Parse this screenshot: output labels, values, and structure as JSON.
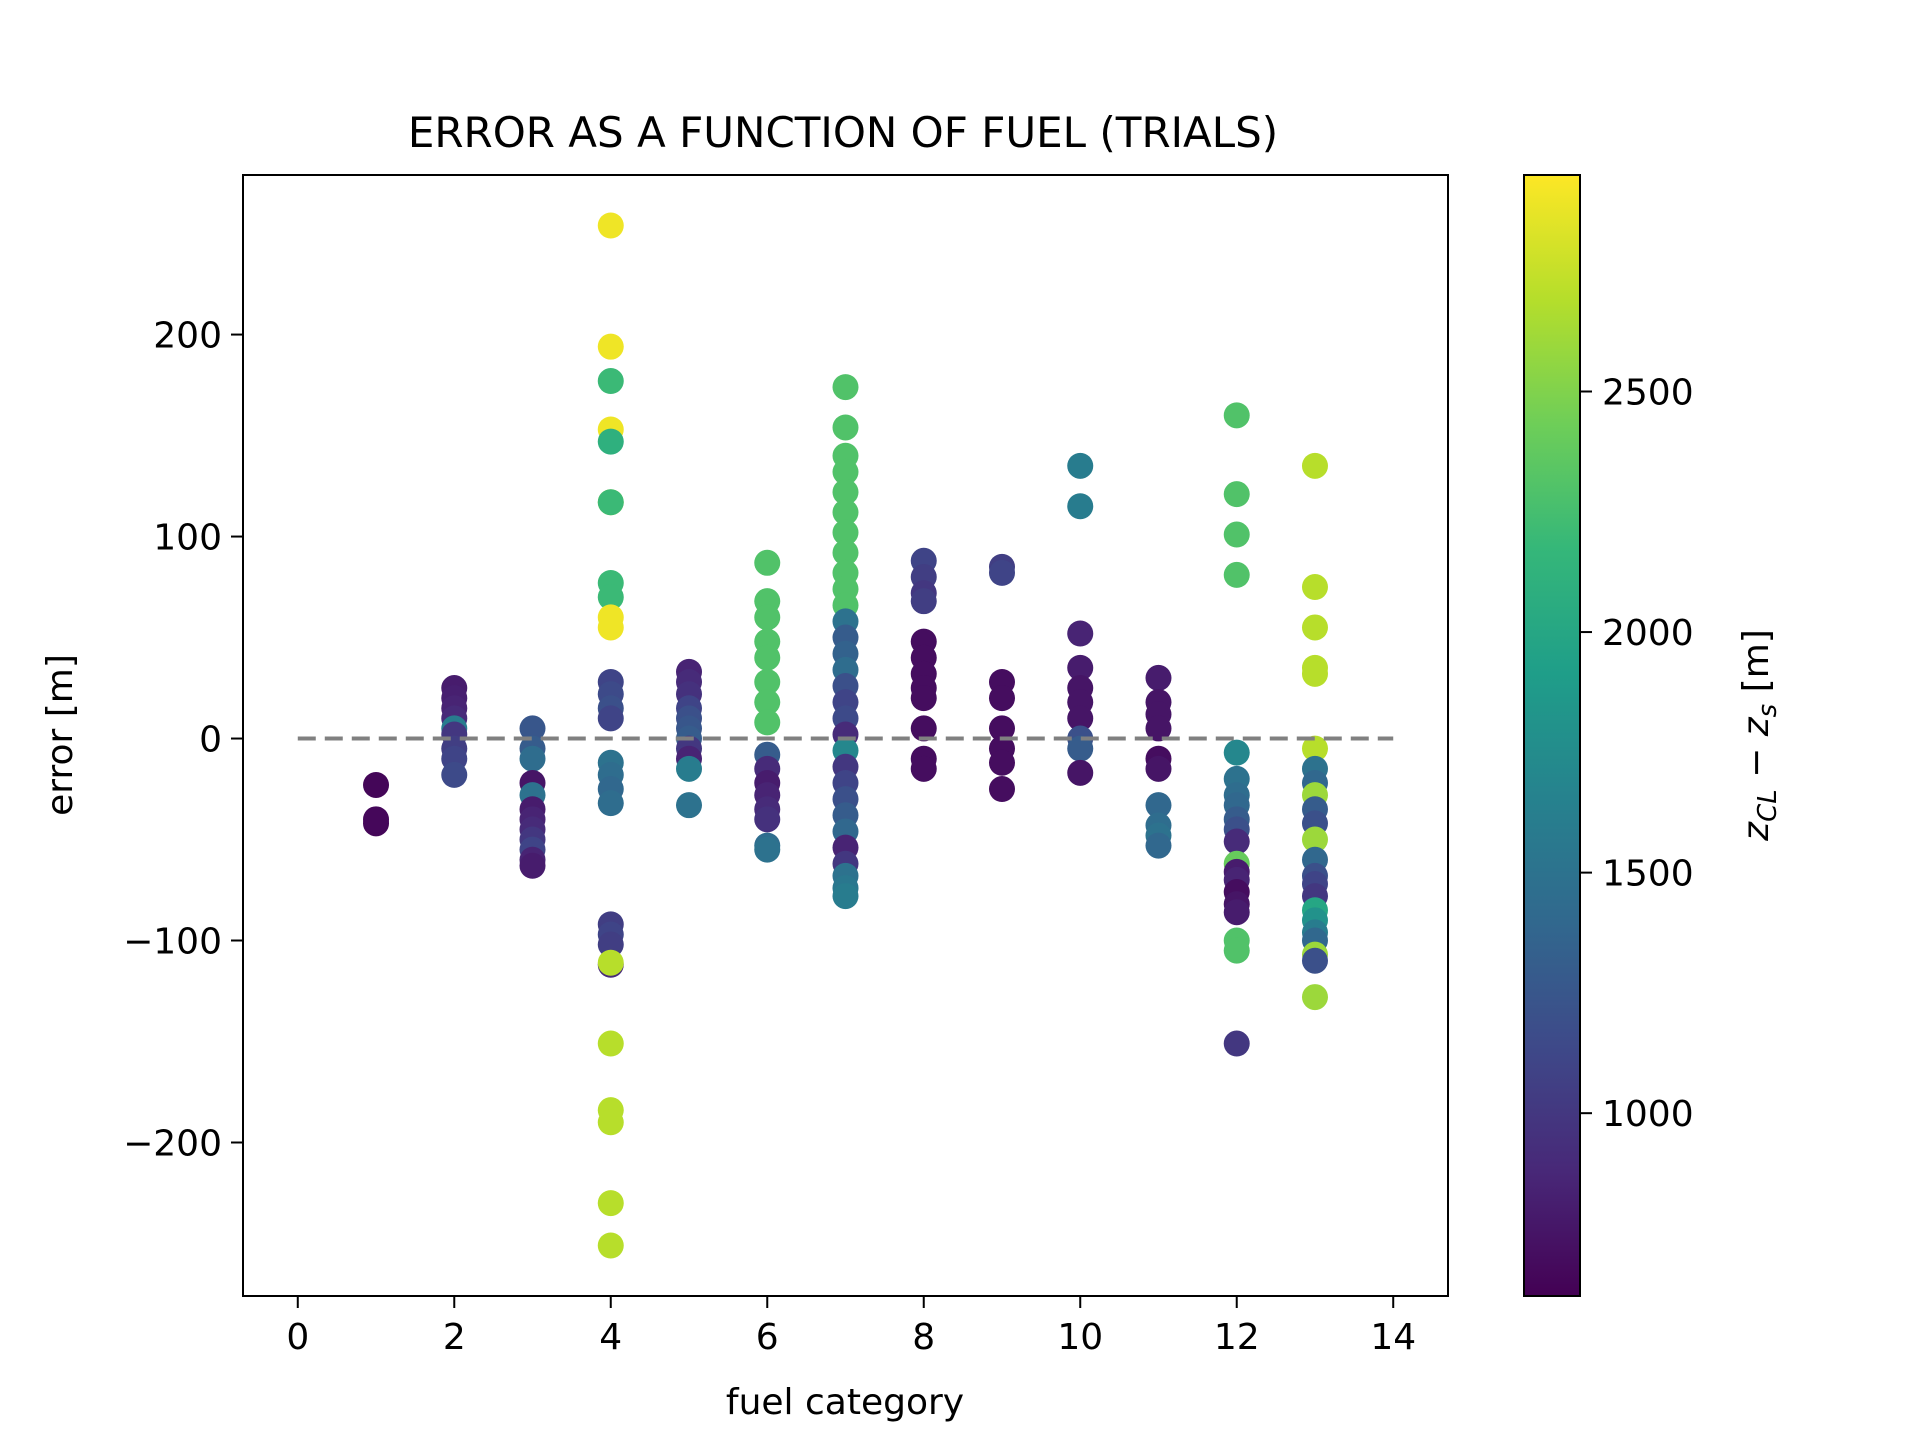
{
  "chart_data": {
    "type": "scatter",
    "title": "ERROR AS A FUNCTION OF FUEL (TRIALS)",
    "xlabel": "fuel category",
    "ylabel": "error [m]",
    "xlim": [
      -0.7,
      14.7
    ],
    "ylim": [
      -276,
      279
    ],
    "x_ticks": [
      0,
      2,
      4,
      6,
      8,
      10,
      12,
      14
    ],
    "x_tick_labels": [
      "0",
      "2",
      "4",
      "6",
      "8",
      "10",
      "12",
      "14"
    ],
    "y_ticks": [
      -200,
      -100,
      0,
      100,
      200
    ],
    "y_tick_labels": [
      "−200",
      "−100",
      "0",
      "100",
      "200"
    ],
    "reference_line": {
      "y": 0,
      "x_range": [
        0,
        14
      ],
      "style": "dashed",
      "color": "#808080"
    },
    "grid": false,
    "colorbar": {
      "label": "z_CL − z_s [m]",
      "label_main": "z",
      "label_sub1": "CL",
      "label_mid": " − ",
      "label_var2": "z",
      "label_sub2": "s",
      "label_unit": " [m]",
      "range": [
        620,
        2950
      ],
      "ticks": [
        1000,
        1500,
        2000,
        2500
      ],
      "tick_labels": [
        "1000",
        "1500",
        "2000",
        "2500"
      ],
      "colormap": "viridis",
      "colormap_stops": [
        "#440154",
        "#482878",
        "#3e4989",
        "#31688e",
        "#26828e",
        "#1f9e89",
        "#35b779",
        "#6ece58",
        "#b5de2b",
        "#fde725"
      ]
    },
    "points": [
      {
        "x": 1,
        "y": -23,
        "c": 650
      },
      {
        "x": 1,
        "y": -42,
        "c": 650
      },
      {
        "x": 1,
        "y": -40,
        "c": 660
      },
      {
        "x": 2,
        "y": 25,
        "c": 800
      },
      {
        "x": 2,
        "y": 20,
        "c": 820
      },
      {
        "x": 2,
        "y": 15,
        "c": 850
      },
      {
        "x": 2,
        "y": 10,
        "c": 900
      },
      {
        "x": 2,
        "y": 5,
        "c": 1600
      },
      {
        "x": 2,
        "y": 2,
        "c": 1000
      },
      {
        "x": 2,
        "y": -5,
        "c": 1050
      },
      {
        "x": 2,
        "y": -10,
        "c": 1100
      },
      {
        "x": 2,
        "y": -18,
        "c": 1150
      },
      {
        "x": 3,
        "y": 5,
        "c": 1250
      },
      {
        "x": 3,
        "y": -5,
        "c": 1300
      },
      {
        "x": 3,
        "y": -10,
        "c": 1450
      },
      {
        "x": 3,
        "y": -22,
        "c": 750
      },
      {
        "x": 3,
        "y": -28,
        "c": 1500
      },
      {
        "x": 3,
        "y": -35,
        "c": 800
      },
      {
        "x": 3,
        "y": -40,
        "c": 850
      },
      {
        "x": 3,
        "y": -45,
        "c": 900
      },
      {
        "x": 3,
        "y": -50,
        "c": 1000
      },
      {
        "x": 3,
        "y": -55,
        "c": 1100
      },
      {
        "x": 3,
        "y": -60,
        "c": 850
      },
      {
        "x": 3,
        "y": -63,
        "c": 800
      },
      {
        "x": 4,
        "y": 254,
        "c": 2900
      },
      {
        "x": 4,
        "y": 194,
        "c": 2900
      },
      {
        "x": 4,
        "y": 177,
        "c": 2200
      },
      {
        "x": 4,
        "y": 153,
        "c": 2900
      },
      {
        "x": 4,
        "y": 147,
        "c": 2100
      },
      {
        "x": 4,
        "y": 117,
        "c": 2700
      },
      {
        "x": 4,
        "y": 117,
        "c": 2200
      },
      {
        "x": 4,
        "y": 77,
        "c": 2200
      },
      {
        "x": 4,
        "y": 70,
        "c": 2200
      },
      {
        "x": 4,
        "y": 60,
        "c": 2900
      },
      {
        "x": 4,
        "y": 55,
        "c": 2900
      },
      {
        "x": 4,
        "y": 28,
        "c": 1100
      },
      {
        "x": 4,
        "y": 22,
        "c": 1150
      },
      {
        "x": 4,
        "y": 15,
        "c": 1200
      },
      {
        "x": 4,
        "y": 10,
        "c": 1100
      },
      {
        "x": 4,
        "y": -12,
        "c": 1500
      },
      {
        "x": 4,
        "y": -18,
        "c": 1450
      },
      {
        "x": 4,
        "y": -25,
        "c": 1400
      },
      {
        "x": 4,
        "y": -32,
        "c": 1450
      },
      {
        "x": 4,
        "y": -92,
        "c": 1050
      },
      {
        "x": 4,
        "y": -97,
        "c": 1100
      },
      {
        "x": 4,
        "y": -102,
        "c": 1050
      },
      {
        "x": 4,
        "y": -112,
        "c": 900
      },
      {
        "x": 4,
        "y": -111,
        "c": 2700
      },
      {
        "x": 4,
        "y": -151,
        "c": 2700
      },
      {
        "x": 4,
        "y": -184,
        "c": 2700
      },
      {
        "x": 4,
        "y": -190,
        "c": 2700
      },
      {
        "x": 4,
        "y": -230,
        "c": 2700
      },
      {
        "x": 4,
        "y": -251,
        "c": 2700
      },
      {
        "x": 5,
        "y": 33,
        "c": 850
      },
      {
        "x": 5,
        "y": 28,
        "c": 900
      },
      {
        "x": 5,
        "y": 22,
        "c": 950
      },
      {
        "x": 5,
        "y": 15,
        "c": 1100
      },
      {
        "x": 5,
        "y": 10,
        "c": 1200
      },
      {
        "x": 5,
        "y": 5,
        "c": 1250
      },
      {
        "x": 5,
        "y": 0,
        "c": 1300
      },
      {
        "x": 5,
        "y": -5,
        "c": 1000
      },
      {
        "x": 5,
        "y": -10,
        "c": 850
      },
      {
        "x": 5,
        "y": -15,
        "c": 1600
      },
      {
        "x": 5,
        "y": -33,
        "c": 1500
      },
      {
        "x": 6,
        "y": 87,
        "c": 2300
      },
      {
        "x": 6,
        "y": 68,
        "c": 2300
      },
      {
        "x": 6,
        "y": 60,
        "c": 2300
      },
      {
        "x": 6,
        "y": 48,
        "c": 2300
      },
      {
        "x": 6,
        "y": 40,
        "c": 2300
      },
      {
        "x": 6,
        "y": 28,
        "c": 2300
      },
      {
        "x": 6,
        "y": 18,
        "c": 2300
      },
      {
        "x": 6,
        "y": 8,
        "c": 2300
      },
      {
        "x": 6,
        "y": -8,
        "c": 1300
      },
      {
        "x": 6,
        "y": -15,
        "c": 900
      },
      {
        "x": 6,
        "y": -22,
        "c": 800
      },
      {
        "x": 6,
        "y": -28,
        "c": 850
      },
      {
        "x": 6,
        "y": -35,
        "c": 900
      },
      {
        "x": 6,
        "y": -40,
        "c": 950
      },
      {
        "x": 6,
        "y": -53,
        "c": 1450
      },
      {
        "x": 6,
        "y": -55,
        "c": 1500
      },
      {
        "x": 7,
        "y": 174,
        "c": 2300
      },
      {
        "x": 7,
        "y": 154,
        "c": 2300
      },
      {
        "x": 7,
        "y": 140,
        "c": 2300
      },
      {
        "x": 7,
        "y": 132,
        "c": 2300
      },
      {
        "x": 7,
        "y": 122,
        "c": 2300
      },
      {
        "x": 7,
        "y": 112,
        "c": 2300
      },
      {
        "x": 7,
        "y": 102,
        "c": 2300
      },
      {
        "x": 7,
        "y": 92,
        "c": 2300
      },
      {
        "x": 7,
        "y": 82,
        "c": 2300
      },
      {
        "x": 7,
        "y": 74,
        "c": 2300
      },
      {
        "x": 7,
        "y": 66,
        "c": 2300
      },
      {
        "x": 7,
        "y": 58,
        "c": 1500
      },
      {
        "x": 7,
        "y": 50,
        "c": 1300
      },
      {
        "x": 7,
        "y": 42,
        "c": 1350
      },
      {
        "x": 7,
        "y": 34,
        "c": 1450
      },
      {
        "x": 7,
        "y": 26,
        "c": 1200
      },
      {
        "x": 7,
        "y": 18,
        "c": 1100
      },
      {
        "x": 7,
        "y": 10,
        "c": 1150
      },
      {
        "x": 7,
        "y": 2,
        "c": 900
      },
      {
        "x": 7,
        "y": -6,
        "c": 1700
      },
      {
        "x": 7,
        "y": -14,
        "c": 1000
      },
      {
        "x": 7,
        "y": -22,
        "c": 1100
      },
      {
        "x": 7,
        "y": -30,
        "c": 1200
      },
      {
        "x": 7,
        "y": -38,
        "c": 1300
      },
      {
        "x": 7,
        "y": -46,
        "c": 1400
      },
      {
        "x": 7,
        "y": -54,
        "c": 850
      },
      {
        "x": 7,
        "y": -62,
        "c": 1000
      },
      {
        "x": 7,
        "y": -68,
        "c": 1500
      },
      {
        "x": 7,
        "y": -74,
        "c": 1550
      },
      {
        "x": 7,
        "y": -78,
        "c": 1600
      },
      {
        "x": 8,
        "y": 88,
        "c": 1100
      },
      {
        "x": 8,
        "y": 80,
        "c": 1050
      },
      {
        "x": 8,
        "y": 72,
        "c": 1000
      },
      {
        "x": 8,
        "y": 68,
        "c": 1050
      },
      {
        "x": 8,
        "y": 48,
        "c": 700
      },
      {
        "x": 8,
        "y": 40,
        "c": 700
      },
      {
        "x": 8,
        "y": 32,
        "c": 700
      },
      {
        "x": 8,
        "y": 25,
        "c": 700
      },
      {
        "x": 8,
        "y": 20,
        "c": 700
      },
      {
        "x": 8,
        "y": 5,
        "c": 700
      },
      {
        "x": 8,
        "y": -10,
        "c": 700
      },
      {
        "x": 8,
        "y": -15,
        "c": 700
      },
      {
        "x": 9,
        "y": 85,
        "c": 1050
      },
      {
        "x": 9,
        "y": 82,
        "c": 1100
      },
      {
        "x": 9,
        "y": 28,
        "c": 700
      },
      {
        "x": 9,
        "y": 20,
        "c": 700
      },
      {
        "x": 9,
        "y": 5,
        "c": 700
      },
      {
        "x": 9,
        "y": -5,
        "c": 700
      },
      {
        "x": 9,
        "y": -12,
        "c": 700
      },
      {
        "x": 9,
        "y": -25,
        "c": 700
      },
      {
        "x": 10,
        "y": 135,
        "c": 1600
      },
      {
        "x": 10,
        "y": 115,
        "c": 1600
      },
      {
        "x": 10,
        "y": 52,
        "c": 850
      },
      {
        "x": 10,
        "y": 35,
        "c": 800
      },
      {
        "x": 10,
        "y": 25,
        "c": 750
      },
      {
        "x": 10,
        "y": 18,
        "c": 750
      },
      {
        "x": 10,
        "y": 10,
        "c": 750
      },
      {
        "x": 10,
        "y": 0,
        "c": 1200
      },
      {
        "x": 10,
        "y": -5,
        "c": 1300
      },
      {
        "x": 10,
        "y": -17,
        "c": 750
      },
      {
        "x": 11,
        "y": 30,
        "c": 800
      },
      {
        "x": 11,
        "y": 18,
        "c": 750
      },
      {
        "x": 11,
        "y": 12,
        "c": 750
      },
      {
        "x": 11,
        "y": 5,
        "c": 750
      },
      {
        "x": 11,
        "y": -10,
        "c": 700
      },
      {
        "x": 11,
        "y": -15,
        "c": 750
      },
      {
        "x": 11,
        "y": -33,
        "c": 1400
      },
      {
        "x": 11,
        "y": -43,
        "c": 1450
      },
      {
        "x": 11,
        "y": -48,
        "c": 1500
      },
      {
        "x": 11,
        "y": -53,
        "c": 1400
      },
      {
        "x": 12,
        "y": 160,
        "c": 2300
      },
      {
        "x": 12,
        "y": 121,
        "c": 2300
      },
      {
        "x": 12,
        "y": 101,
        "c": 2300
      },
      {
        "x": 12,
        "y": 81,
        "c": 2300
      },
      {
        "x": 12,
        "y": -7,
        "c": 1700
      },
      {
        "x": 12,
        "y": -20,
        "c": 1500
      },
      {
        "x": 12,
        "y": -28,
        "c": 1450
      },
      {
        "x": 12,
        "y": -33,
        "c": 1400
      },
      {
        "x": 12,
        "y": -40,
        "c": 1300
      },
      {
        "x": 12,
        "y": -45,
        "c": 1200
      },
      {
        "x": 12,
        "y": -51,
        "c": 900
      },
      {
        "x": 12,
        "y": -62,
        "c": 2400
      },
      {
        "x": 12,
        "y": -66,
        "c": 800
      },
      {
        "x": 12,
        "y": -70,
        "c": 850
      },
      {
        "x": 12,
        "y": -76,
        "c": 700
      },
      {
        "x": 12,
        "y": -82,
        "c": 750
      },
      {
        "x": 12,
        "y": -86,
        "c": 800
      },
      {
        "x": 12,
        "y": -100,
        "c": 2300
      },
      {
        "x": 12,
        "y": -105,
        "c": 2300
      },
      {
        "x": 12,
        "y": -151,
        "c": 1000
      },
      {
        "x": 13,
        "y": 135,
        "c": 2700
      },
      {
        "x": 13,
        "y": 75,
        "c": 2700
      },
      {
        "x": 13,
        "y": 55,
        "c": 2700
      },
      {
        "x": 13,
        "y": 35,
        "c": 2700
      },
      {
        "x": 13,
        "y": 32,
        "c": 2700
      },
      {
        "x": 13,
        "y": -5,
        "c": 2700
      },
      {
        "x": 13,
        "y": -15,
        "c": 1500
      },
      {
        "x": 13,
        "y": -22,
        "c": 1400
      },
      {
        "x": 13,
        "y": -28,
        "c": 2600
      },
      {
        "x": 13,
        "y": -35,
        "c": 1300
      },
      {
        "x": 13,
        "y": -42,
        "c": 1200
      },
      {
        "x": 13,
        "y": -50,
        "c": 2600
      },
      {
        "x": 13,
        "y": -60,
        "c": 1400
      },
      {
        "x": 13,
        "y": -68,
        "c": 1200
      },
      {
        "x": 13,
        "y": -72,
        "c": 1100
      },
      {
        "x": 13,
        "y": -78,
        "c": 1000
      },
      {
        "x": 13,
        "y": -85,
        "c": 2000
      },
      {
        "x": 13,
        "y": -90,
        "c": 1800
      },
      {
        "x": 13,
        "y": -96,
        "c": 1600
      },
      {
        "x": 13,
        "y": -100,
        "c": 1400
      },
      {
        "x": 13,
        "y": -107,
        "c": 2600
      },
      {
        "x": 13,
        "y": -110,
        "c": 1200
      },
      {
        "x": 13,
        "y": -128,
        "c": 2600
      }
    ]
  }
}
